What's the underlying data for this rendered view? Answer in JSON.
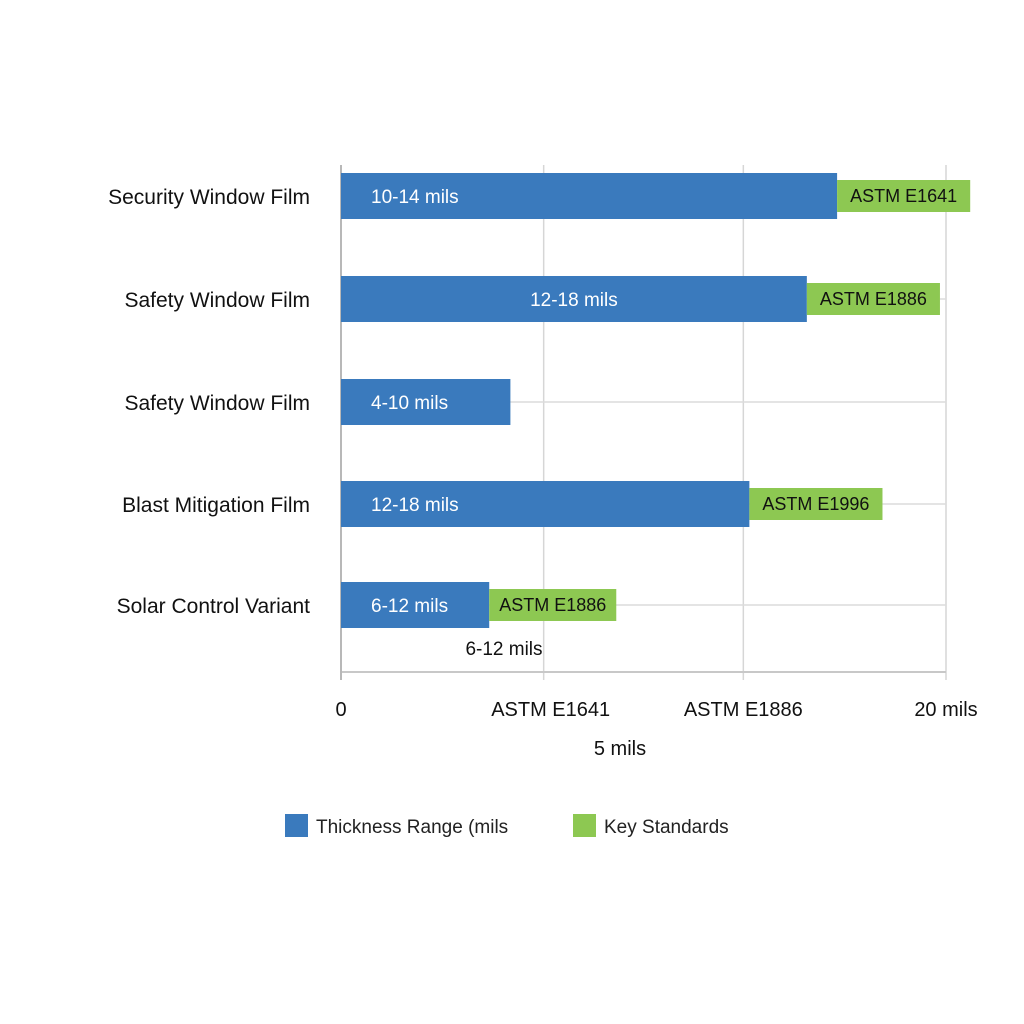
{
  "chart_data": {
    "type": "bar",
    "orientation": "horizontal",
    "stacked": true,
    "categories": [
      "Security Window Film",
      "Safety Window Film",
      "Safety Window Film",
      "Blast Mitigation Film",
      "Solar Control Variant"
    ],
    "series": [
      {
        "name": "Thickness Range (mils",
        "color": "#3a7abd",
        "values": [
          16.4,
          15.4,
          5.6,
          13.5,
          4.9
        ],
        "labels": [
          "10-14 mils",
          "12-18 mils",
          "4-10 mils",
          "12-18 mils",
          "6-12 mils"
        ]
      },
      {
        "name": "Key Standards",
        "color": "#8dc852",
        "values": [
          4.4,
          4.4,
          0,
          4.4,
          4.2
        ],
        "labels": [
          "ASTM E1641",
          "ASTM E1886",
          "",
          "ASTM E1996",
          "ASTM E1886"
        ]
      }
    ],
    "xlim": [
      0,
      20
    ],
    "x_ticks": [
      {
        "value": 0,
        "label": "0"
      },
      {
        "value": 6.7,
        "label": "ASTM E1641"
      },
      {
        "value": 13.3,
        "label": "ASTM E1886"
      },
      {
        "value": 20,
        "label": "20 mils"
      }
    ],
    "xlabel": "5 mils",
    "annotation": "6-12 mils",
    "grid": true,
    "legend_position": "bottom"
  }
}
